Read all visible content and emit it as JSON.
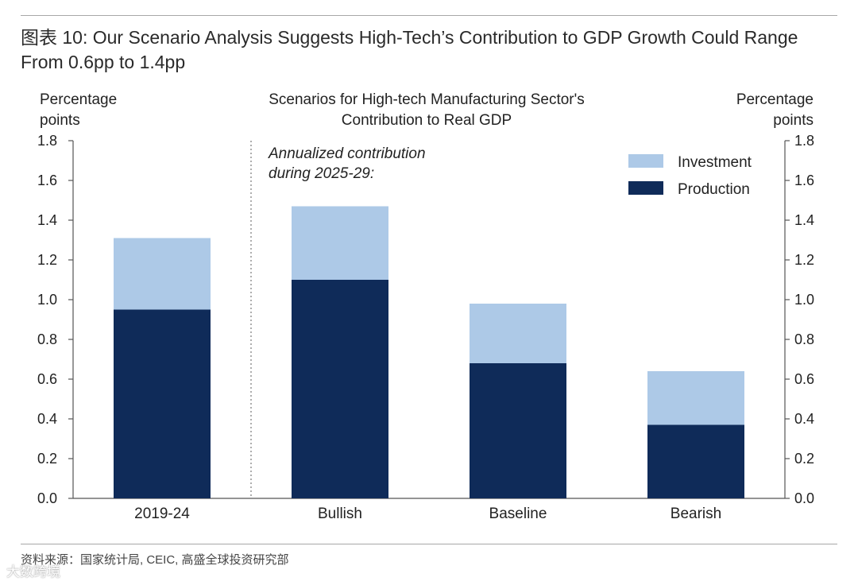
{
  "figure": {
    "title": "图表 10: Our Scenario Analysis Suggests High-Tech’s Contribution to GDP Growth Could Range From 0.6pp to 1.4pp",
    "source": "资料来源：国家统计局, CEIC, 高盛全球投资研究部",
    "watermark": "大数跨境"
  },
  "chart_data": {
    "type": "bar",
    "stacked": true,
    "title": "Scenarios for High-tech Manufacturing Sector's Contribution to Real GDP",
    "title_lines": [
      "Scenarios for High-tech Manufacturing Sector's",
      "Contribution to Real GDP"
    ],
    "ylabel_left": [
      "Percentage",
      "points"
    ],
    "ylabel_right": [
      "Percentage",
      "points"
    ],
    "ylim": [
      0,
      1.8
    ],
    "yticks": [
      "0.0",
      "0.2",
      "0.4",
      "0.6",
      "0.8",
      "1.0",
      "1.2",
      "1.4",
      "1.6",
      "1.8"
    ],
    "categories": [
      "2019-24",
      "Bullish",
      "Baseline",
      "Bearish"
    ],
    "series": [
      {
        "name": "Production",
        "color": "#0f2b59",
        "values": [
          0.95,
          1.1,
          0.68,
          0.37
        ]
      },
      {
        "name": "Investment",
        "color": "#adc9e7",
        "values": [
          0.36,
          0.37,
          0.3,
          0.27
        ]
      }
    ],
    "legend_order": [
      "Investment",
      "Production"
    ],
    "legend_position": "top-right",
    "annotation": [
      "Annualized contribution",
      "during 2025-29:"
    ],
    "divider_after_category": 0
  }
}
